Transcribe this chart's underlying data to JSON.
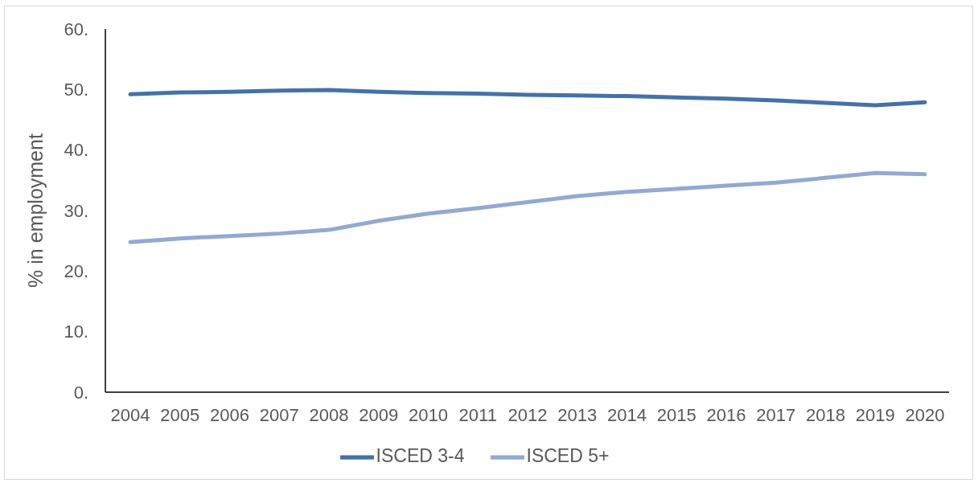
{
  "chart_data": {
    "type": "line",
    "ylabel": "% in employment",
    "categories": [
      "2004",
      "2005",
      "2006",
      "2007",
      "2008",
      "2009",
      "2010",
      "2011",
      "2012",
      "2013",
      "2014",
      "2015",
      "2016",
      "2017",
      "2018",
      "2019",
      "2020"
    ],
    "series": [
      {
        "name": "ISCED 3-4",
        "color": "#4472a8",
        "values": [
          49.2,
          49.5,
          49.6,
          49.8,
          49.9,
          49.6,
          49.4,
          49.3,
          49.1,
          49.0,
          48.9,
          48.7,
          48.5,
          48.2,
          47.8,
          47.4,
          47.9
        ]
      },
      {
        "name": "ISCED 5+",
        "color": "#93a9d2",
        "values": [
          24.8,
          25.4,
          25.8,
          26.2,
          26.8,
          28.3,
          29.5,
          30.4,
          31.4,
          32.4,
          33.1,
          33.6,
          34.1,
          34.6,
          35.4,
          36.2,
          36.0
        ]
      }
    ],
    "ylim": [
      0,
      60
    ],
    "yticks": [
      {
        "value": 0,
        "label": "0."
      },
      {
        "value": 10,
        "label": "10."
      },
      {
        "value": 20,
        "label": "20."
      },
      {
        "value": 30,
        "label": "30."
      },
      {
        "value": 40,
        "label": "40."
      },
      {
        "value": 50,
        "label": "50."
      },
      {
        "value": 60,
        "label": "60."
      }
    ],
    "legend": "bottom",
    "marker": "none",
    "line_style": "solid"
  }
}
